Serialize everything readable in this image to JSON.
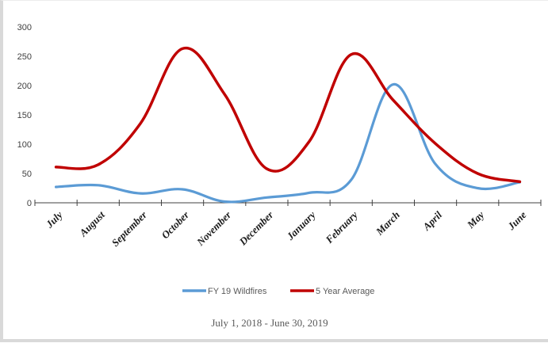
{
  "chart_data": {
    "type": "line",
    "categories": [
      "July",
      "August",
      "September",
      "October",
      "November",
      "December",
      "January",
      "February",
      "March",
      "April",
      "May",
      "June"
    ],
    "series": [
      {
        "name": "FY 19 Wildfires",
        "color": "#5b9bd5",
        "values": [
          27,
          30,
          16,
          23,
          2,
          9,
          17,
          39,
          202,
          66,
          25,
          35
        ]
      },
      {
        "name": "5 Year Average",
        "color": "#c00000",
        "values": [
          61,
          65,
          135,
          263,
          185,
          58,
          104,
          253,
          175,
          101,
          50,
          36
        ]
      }
    ],
    "yticks": [
      0,
      50,
      100,
      150,
      200,
      250,
      300
    ],
    "ylim": [
      0,
      300
    ],
    "legend_position": "bottom",
    "caption": "July 1, 2018 - June 30, 2019"
  }
}
